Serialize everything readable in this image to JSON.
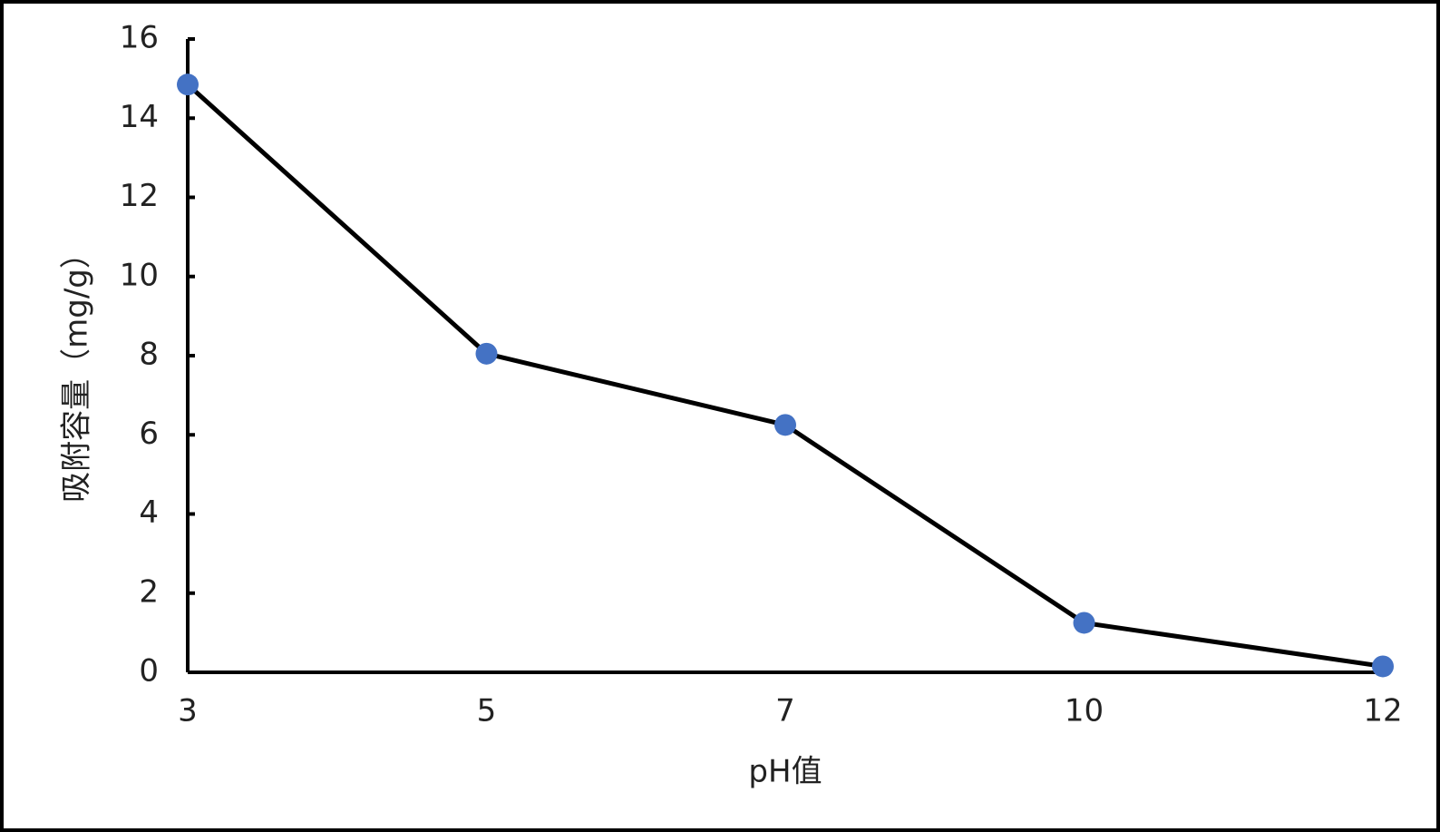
{
  "chart_data": {
    "type": "line",
    "x_label": "pH值",
    "y_label": "吸附容量（mg/g）",
    "categories": [
      "3",
      "5",
      "7",
      "10",
      "12"
    ],
    "values": [
      14.85,
      8.05,
      6.25,
      1.25,
      0.15
    ],
    "line_color": "#000000",
    "marker_color": "#4472c4",
    "ylim": [
      0,
      16
    ],
    "yticks": [
      0,
      2,
      4,
      6,
      8,
      10,
      12,
      14,
      16
    ],
    "grid": false
  }
}
